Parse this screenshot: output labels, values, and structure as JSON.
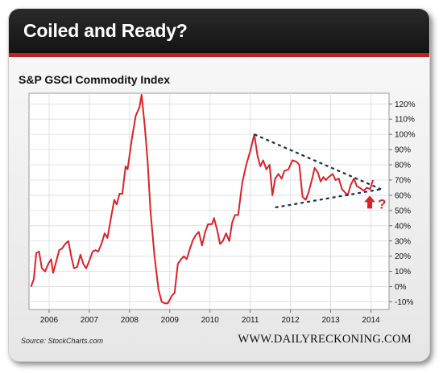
{
  "header": {
    "title": "Coiled and Ready?"
  },
  "source": "Source: StockCharts.com",
  "site": "WWW.DAILYRECKONING.COM",
  "colors": {
    "series": "#d9232a",
    "header": "#1e1e1e",
    "accent": "#c0221f",
    "trend": "#1f2d4d"
  },
  "icons": [
    "up-arrow-icon",
    "question-mark-icon"
  ],
  "chart_data": {
    "type": "line",
    "title": "S&P GSCI Commodity Index",
    "xlabel": "",
    "ylabel": "",
    "x_ticks": [
      "2006",
      "2007",
      "2008",
      "2009",
      "2010",
      "2011",
      "2012",
      "2013",
      "2014"
    ],
    "y_ticks": [
      "120%",
      "110%",
      "100%",
      "90%",
      "80%",
      "70%",
      "60%",
      "50%",
      "40%",
      "30%",
      "20%",
      "10%",
      "0%",
      "-10%"
    ],
    "xlim": [
      2005.5,
      2014.45
    ],
    "ylim": [
      -15,
      127
    ],
    "grid": true,
    "legend": "none",
    "series": [
      {
        "values": [
          [
            2005.55,
            0
          ],
          [
            2005.62,
            5
          ],
          [
            2005.68,
            22
          ],
          [
            2005.75,
            23
          ],
          [
            2005.82,
            12
          ],
          [
            2005.9,
            10
          ],
          [
            2005.98,
            15
          ],
          [
            2006.05,
            18
          ],
          [
            2006.1,
            9
          ],
          [
            2006.18,
            17
          ],
          [
            2006.25,
            24
          ],
          [
            2006.32,
            25
          ],
          [
            2006.4,
            28
          ],
          [
            2006.48,
            30
          ],
          [
            2006.55,
            20
          ],
          [
            2006.62,
            12
          ],
          [
            2006.7,
            13
          ],
          [
            2006.78,
            21
          ],
          [
            2006.85,
            15
          ],
          [
            2006.92,
            12
          ],
          [
            2007.0,
            17
          ],
          [
            2007.08,
            23
          ],
          [
            2007.15,
            24
          ],
          [
            2007.22,
            23
          ],
          [
            2007.3,
            28
          ],
          [
            2007.38,
            35
          ],
          [
            2007.45,
            32
          ],
          [
            2007.55,
            47
          ],
          [
            2007.62,
            57
          ],
          [
            2007.68,
            54
          ],
          [
            2007.75,
            61
          ],
          [
            2007.82,
            61
          ],
          [
            2007.9,
            79
          ],
          [
            2007.95,
            77
          ],
          [
            2008.05,
            96
          ],
          [
            2008.15,
            112
          ],
          [
            2008.25,
            118
          ],
          [
            2008.3,
            126
          ],
          [
            2008.38,
            105
          ],
          [
            2008.45,
            82
          ],
          [
            2008.52,
            50
          ],
          [
            2008.62,
            20
          ],
          [
            2008.72,
            -2
          ],
          [
            2008.8,
            -10
          ],
          [
            2008.88,
            -11
          ],
          [
            2008.95,
            -11
          ],
          [
            2009.05,
            -6
          ],
          [
            2009.12,
            -4
          ],
          [
            2009.2,
            15
          ],
          [
            2009.28,
            18
          ],
          [
            2009.35,
            20
          ],
          [
            2009.42,
            18
          ],
          [
            2009.5,
            25
          ],
          [
            2009.58,
            31
          ],
          [
            2009.65,
            34
          ],
          [
            2009.72,
            36
          ],
          [
            2009.8,
            27
          ],
          [
            2009.88,
            36
          ],
          [
            2009.95,
            41
          ],
          [
            2010.05,
            41
          ],
          [
            2010.1,
            45
          ],
          [
            2010.18,
            37
          ],
          [
            2010.25,
            28
          ],
          [
            2010.32,
            30
          ],
          [
            2010.4,
            35
          ],
          [
            2010.48,
            30
          ],
          [
            2010.55,
            42
          ],
          [
            2010.62,
            47
          ],
          [
            2010.7,
            47
          ],
          [
            2010.8,
            68
          ],
          [
            2010.9,
            80
          ],
          [
            2011.0,
            89
          ],
          [
            2011.1,
            100
          ],
          [
            2011.18,
            86
          ],
          [
            2011.25,
            79
          ],
          [
            2011.32,
            83
          ],
          [
            2011.4,
            77
          ],
          [
            2011.48,
            80
          ],
          [
            2011.55,
            60
          ],
          [
            2011.62,
            71
          ],
          [
            2011.7,
            74
          ],
          [
            2011.78,
            71
          ],
          [
            2011.85,
            76
          ],
          [
            2011.95,
            77
          ],
          [
            2012.05,
            83
          ],
          [
            2012.15,
            82
          ],
          [
            2012.22,
            80
          ],
          [
            2012.3,
            59
          ],
          [
            2012.38,
            57
          ],
          [
            2012.45,
            62
          ],
          [
            2012.55,
            72
          ],
          [
            2012.6,
            78
          ],
          [
            2012.68,
            75
          ],
          [
            2012.75,
            69
          ],
          [
            2012.82,
            72
          ],
          [
            2012.88,
            70
          ],
          [
            2012.95,
            72
          ],
          [
            2013.05,
            74
          ],
          [
            2013.12,
            70
          ],
          [
            2013.2,
            71
          ],
          [
            2013.28,
            64
          ],
          [
            2013.35,
            62
          ],
          [
            2013.42,
            60
          ],
          [
            2013.5,
            67
          ],
          [
            2013.58,
            71
          ],
          [
            2013.65,
            66
          ],
          [
            2013.72,
            65
          ],
          [
            2013.82,
            63
          ],
          [
            2013.9,
            65
          ],
          [
            2013.98,
            64
          ],
          [
            2014.05,
            70
          ]
        ]
      }
    ],
    "annotations": {
      "upper_trendline": [
        [
          2011.1,
          100
        ],
        [
          2014.25,
          64
        ]
      ],
      "lower_trendline": [
        [
          2011.62,
          52
        ],
        [
          2014.25,
          64
        ]
      ],
      "marker_text": "?"
    }
  }
}
